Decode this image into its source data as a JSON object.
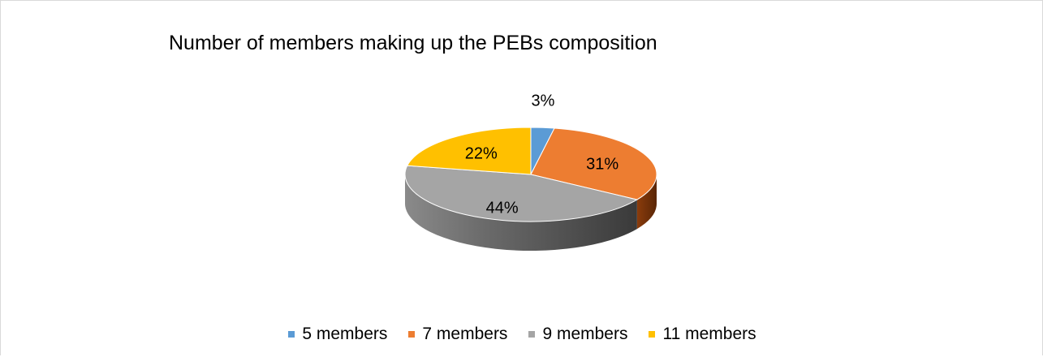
{
  "chart_data": {
    "type": "pie",
    "title": "Number of members making up the PEBs composition",
    "categories": [
      "5 members",
      "7 members",
      "9 members",
      "11 members"
    ],
    "values": [
      3,
      31,
      44,
      22
    ],
    "data_labels": [
      "3%",
      "31%",
      "44%",
      "22%"
    ],
    "colors": [
      "#5b9bd5",
      "#ed7d31",
      "#a5a5a5",
      "#ffc000"
    ],
    "legend": "bottom",
    "style": "3d"
  }
}
